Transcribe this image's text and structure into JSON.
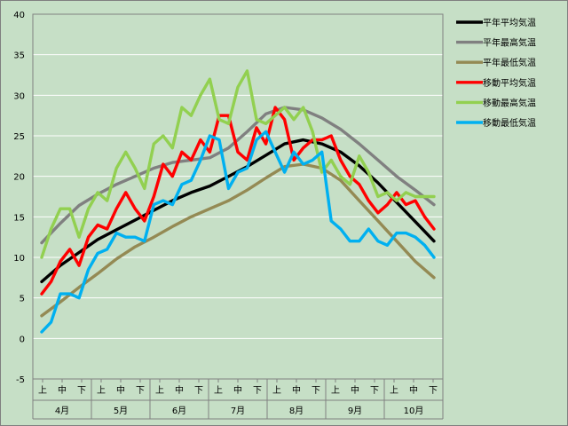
{
  "chart_data": {
    "type": "line",
    "ylim": [
      -5,
      40
    ],
    "y_ticks": [
      -5,
      0,
      5,
      10,
      15,
      20,
      25,
      30,
      35,
      40
    ],
    "x_range": [
      0,
      21
    ],
    "decades": [
      "上",
      "中",
      "下"
    ],
    "months": [
      "4月",
      "5月",
      "6月",
      "7月",
      "8月",
      "9月",
      "10月"
    ],
    "grid": true,
    "legend_position": "right",
    "colors": {
      "plot_bg": "#c6dfc6",
      "grid": "#ffffff",
      "axis": "#808080"
    },
    "series": [
      {
        "name": "平年平均気温",
        "color": "#000000",
        "x": [
          0,
          1,
          2,
          3,
          4,
          5,
          6,
          7,
          8,
          9,
          10,
          11,
          12,
          13,
          14,
          15,
          16,
          17,
          18,
          19,
          20,
          21
        ],
        "y": [
          7.0,
          9.0,
          10.6,
          12.2,
          13.4,
          14.6,
          15.8,
          17.0,
          18.0,
          18.8,
          20.0,
          21.2,
          22.6,
          24.0,
          24.5,
          24.0,
          23.0,
          21.3,
          19.2,
          16.8,
          14.4,
          12.0
        ]
      },
      {
        "name": "平年最高気温",
        "color": "#808080",
        "x": [
          0,
          1,
          2,
          3,
          4,
          5,
          6,
          7,
          8,
          9,
          10,
          11,
          12,
          13,
          14,
          15,
          16,
          17,
          18,
          19,
          20,
          21
        ],
        "y": [
          11.8,
          14.2,
          16.4,
          17.8,
          19.0,
          20.0,
          21.0,
          21.7,
          22.0,
          22.3,
          23.5,
          25.5,
          27.7,
          28.5,
          28.2,
          27.2,
          25.8,
          24.0,
          22.0,
          20.0,
          18.3,
          16.5
        ]
      },
      {
        "name": "平年最低気温",
        "color": "#948a54",
        "x": [
          0,
          1,
          2,
          3,
          4,
          5,
          6,
          7,
          8,
          9,
          10,
          11,
          12,
          13,
          14,
          15,
          16,
          17,
          18,
          19,
          20,
          21
        ],
        "y": [
          2.8,
          4.5,
          6.3,
          8.0,
          9.8,
          11.3,
          12.5,
          13.8,
          15.0,
          16.0,
          17.0,
          18.3,
          19.8,
          21.2,
          21.5,
          21.0,
          19.5,
          17.0,
          14.5,
          12.0,
          9.5,
          7.5
        ]
      },
      {
        "name": "移動平均気温",
        "color": "#ff0000",
        "x": [
          0,
          0.5,
          1,
          1.5,
          2,
          2.5,
          3,
          3.5,
          4,
          4.5,
          5,
          5.5,
          6,
          6.5,
          7,
          7.5,
          8,
          8.5,
          9,
          9.5,
          10,
          10.5,
          11,
          11.5,
          12,
          12.5,
          13,
          13.5,
          14,
          14.5,
          15,
          15.5,
          16,
          16.5,
          17,
          17.5,
          18,
          18.5,
          19,
          19.5,
          20,
          20.5,
          21
        ],
        "y": [
          5.5,
          7.0,
          9.5,
          11.0,
          9.0,
          12.5,
          14.0,
          13.5,
          16.0,
          18.0,
          16.0,
          14.5,
          17.5,
          21.5,
          20.0,
          23.0,
          22.0,
          24.5,
          23.0,
          27.5,
          27.5,
          23.0,
          22.0,
          26.0,
          24.0,
          28.5,
          27.0,
          22.0,
          23.5,
          24.5,
          24.5,
          25.0,
          22.0,
          20.0,
          19.0,
          17.0,
          15.5,
          16.5,
          18.0,
          16.5,
          17.0,
          15.0,
          13.5
        ]
      },
      {
        "name": "移動最高気温",
        "color": "#92d050",
        "x": [
          0,
          0.5,
          1,
          1.5,
          2,
          2.5,
          3,
          3.5,
          4,
          4.5,
          5,
          5.5,
          6,
          6.5,
          7,
          7.5,
          8,
          8.5,
          9,
          9.5,
          10,
          10.5,
          11,
          11.5,
          12,
          12.5,
          13,
          13.5,
          14,
          14.5,
          15,
          15.5,
          16,
          16.5,
          17,
          17.5,
          18,
          18.5,
          19,
          19.5,
          20,
          20.5,
          21
        ],
        "y": [
          10.0,
          13.5,
          16.0,
          16.0,
          12.5,
          16.0,
          18.0,
          17.0,
          21.0,
          23.0,
          21.0,
          18.5,
          24.0,
          25.0,
          23.5,
          28.5,
          27.5,
          30.0,
          32.0,
          27.0,
          26.5,
          31.0,
          33.0,
          27.0,
          26.5,
          27.5,
          28.5,
          27.0,
          28.5,
          25.5,
          20.5,
          22.0,
          20.0,
          19.0,
          22.5,
          20.5,
          17.5,
          18.0,
          17.0,
          18.0,
          17.5,
          17.5,
          17.5
        ]
      },
      {
        "name": "移動最低気温",
        "color": "#00b0f0",
        "x": [
          0,
          0.5,
          1,
          1.5,
          2,
          2.5,
          3,
          3.5,
          4,
          4.5,
          5,
          5.5,
          6,
          6.5,
          7,
          7.5,
          8,
          8.5,
          9,
          9.5,
          10,
          10.5,
          11,
          11.5,
          12,
          12.5,
          13,
          13.5,
          14,
          14.5,
          15,
          15.5,
          16,
          16.5,
          17,
          17.5,
          18,
          18.5,
          19,
          19.5,
          20,
          20.5,
          21
        ],
        "y": [
          0.8,
          2.0,
          5.5,
          5.5,
          5.0,
          8.5,
          10.5,
          11.0,
          13.0,
          12.5,
          12.5,
          12.0,
          16.5,
          17.0,
          16.5,
          19.0,
          19.5,
          22.0,
          25.0,
          24.5,
          18.5,
          20.5,
          21.0,
          24.5,
          25.5,
          23.0,
          20.5,
          23.0,
          21.5,
          22.0,
          23.0,
          14.5,
          13.5,
          12.0,
          12.0,
          13.5,
          12.0,
          11.5,
          13.0,
          13.0,
          12.5,
          11.5,
          10.0
        ]
      }
    ]
  }
}
